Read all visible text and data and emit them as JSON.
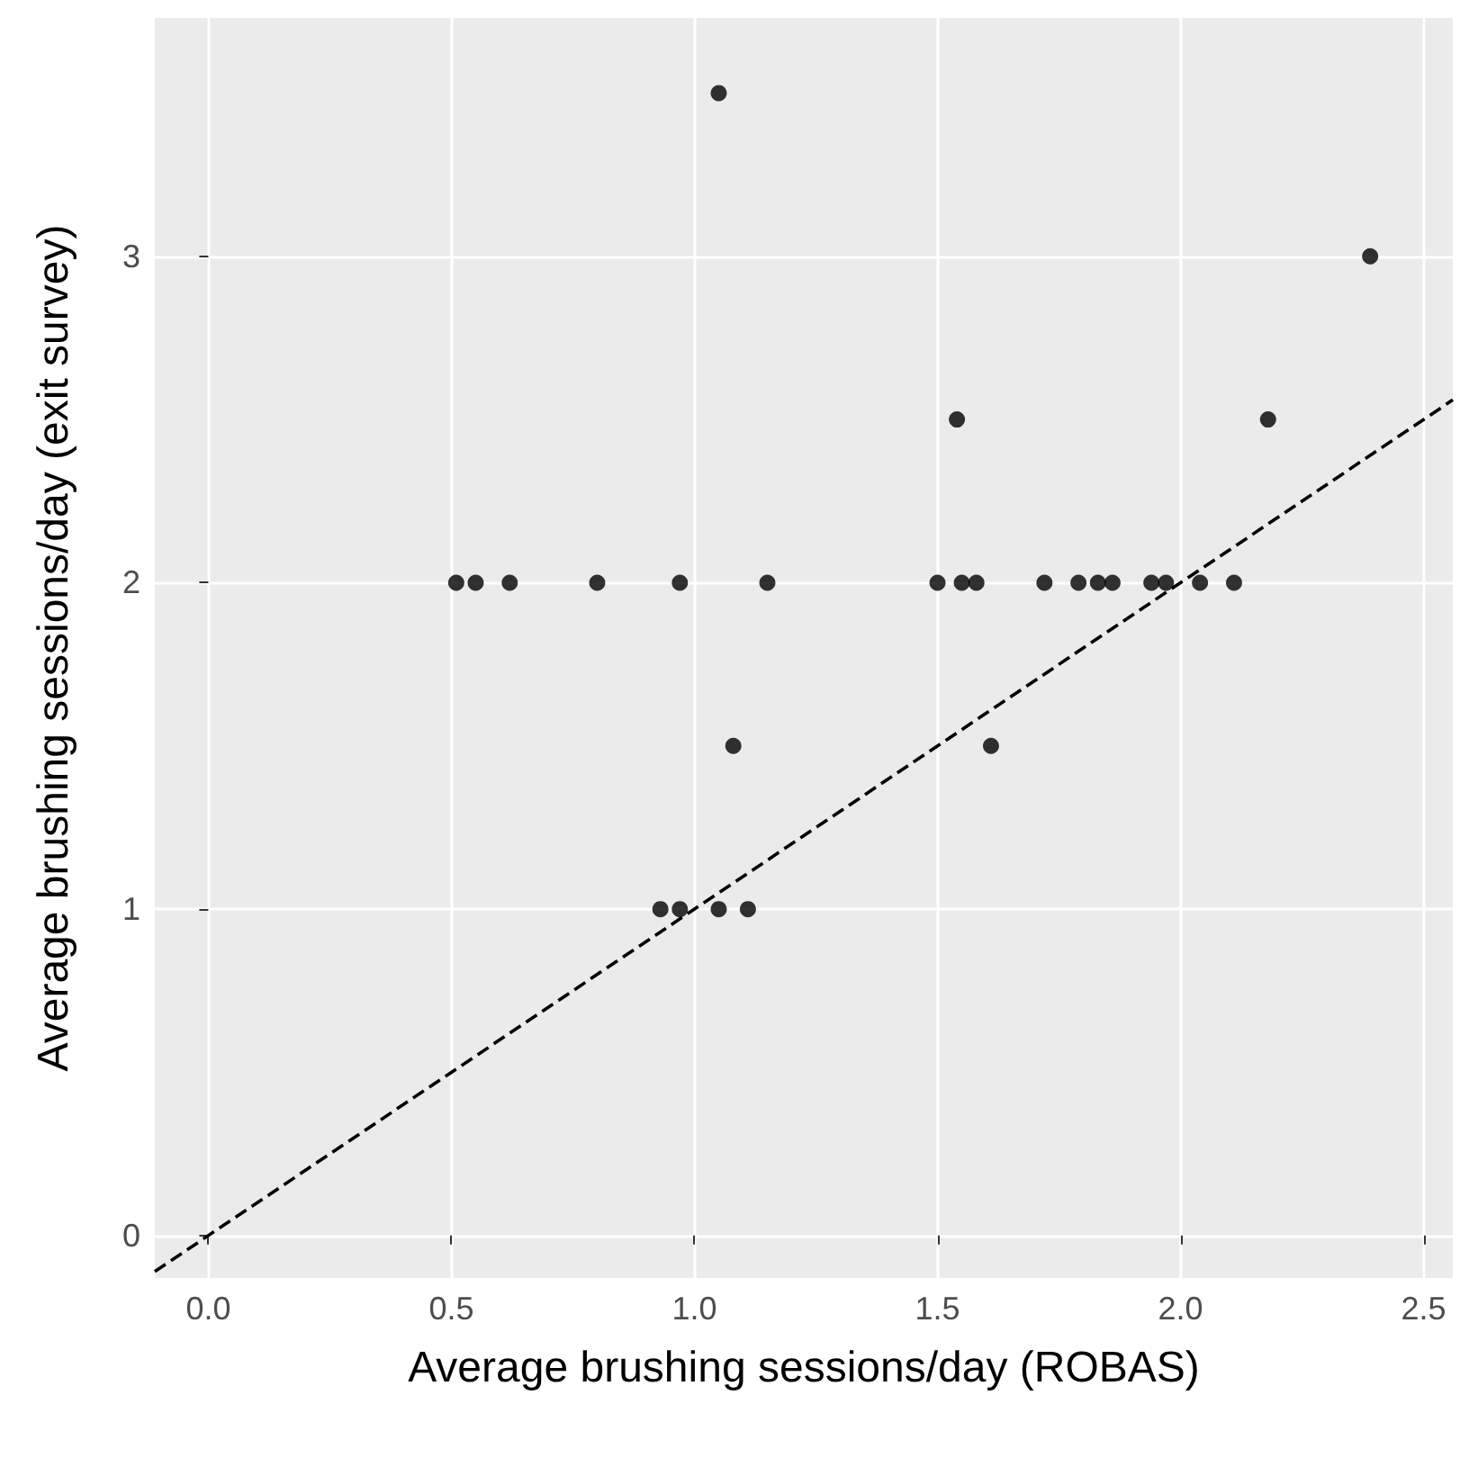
{
  "chart_data": {
    "type": "scatter",
    "xlabel": "Average brushing sessions/day (ROBAS)",
    "ylabel": "Average brushing sessions/day (exit survey)",
    "xlim": [
      -0.11,
      2.56
    ],
    "ylim": [
      -0.13,
      3.73
    ],
    "xticks": [
      {
        "value": 0,
        "label": "0.0"
      },
      0.5,
      {
        "value": 1,
        "label": "1.0"
      },
      1.5,
      {
        "value": 2,
        "label": "2.0"
      },
      2.5
    ],
    "yticks": [
      0,
      1,
      2,
      3
    ],
    "grid": true,
    "marker": "circle",
    "series": [
      {
        "color": "#000000",
        "x": [
          0.51,
          0.55,
          0.62,
          0.8,
          0.97,
          1.15,
          1.5,
          1.55,
          1.58,
          1.72,
          1.79,
          1.83,
          1.86,
          1.94,
          1.97,
          2.04,
          2.11,
          1.05,
          2.39,
          1.54,
          2.18,
          1.08,
          1.61,
          0.93,
          0.97,
          1.05,
          1.11
        ],
        "values": [
          2,
          2,
          2,
          2,
          2,
          2,
          2,
          2,
          2,
          2,
          2,
          2,
          2,
          2,
          2,
          2,
          2,
          3.5,
          3,
          2.5,
          2.5,
          1.5,
          1.5,
          1,
          1,
          1,
          1
        ]
      },
      {
        "type": "line",
        "color": "#000000",
        "line_style": "dashed",
        "marker": "none",
        "x": [
          -0.11,
          2.56
        ],
        "values": [
          -0.11,
          2.56
        ]
      }
    ]
  }
}
